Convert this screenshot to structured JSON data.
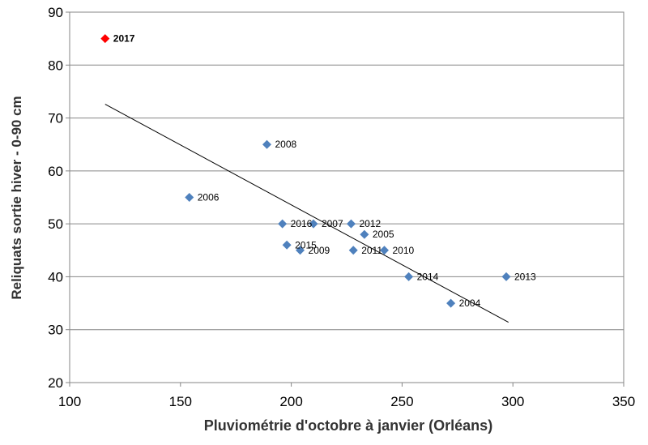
{
  "chart_data": {
    "type": "scatter",
    "xlabel": "Pluviométrie d'octobre à janvier (Orléans)",
    "ylabel": "Reliquats sortie hiver - 0-90 cm",
    "xlim": [
      100,
      350
    ],
    "ylim": [
      20,
      90
    ],
    "xticks": [
      "100",
      "150",
      "200",
      "250",
      "300",
      "350"
    ],
    "yticks": [
      "20",
      "30",
      "40",
      "50",
      "60",
      "70",
      "80",
      "90"
    ],
    "grid": "horizontal",
    "colors": {
      "points": "#4f81bd",
      "highlight": "#ff0000",
      "grid": "#868686",
      "trendline": "#000000"
    },
    "points": [
      {
        "label": "2004",
        "x": 272,
        "y": 35
      },
      {
        "label": "2005",
        "x": 233,
        "y": 48
      },
      {
        "label": "2006",
        "x": 154,
        "y": 55
      },
      {
        "label": "2007",
        "x": 210,
        "y": 50
      },
      {
        "label": "2008",
        "x": 189,
        "y": 65
      },
      {
        "label": "2009",
        "x": 204,
        "y": 45
      },
      {
        "label": "2010",
        "x": 242,
        "y": 45
      },
      {
        "label": "2011",
        "x": 228,
        "y": 45
      },
      {
        "label": "2012",
        "x": 227,
        "y": 50
      },
      {
        "label": "2013",
        "x": 297,
        "y": 40
      },
      {
        "label": "2014",
        "x": 253,
        "y": 40
      },
      {
        "label": "2015",
        "x": 198,
        "y": 46
      },
      {
        "label": "2016",
        "x": 196,
        "y": 50
      },
      {
        "label": "2017",
        "x": 116,
        "y": 85,
        "highlight": true
      }
    ],
    "trendline": {
      "type": "linear",
      "x": [
        116,
        298
      ],
      "y": [
        72.6,
        31.4
      ]
    }
  }
}
